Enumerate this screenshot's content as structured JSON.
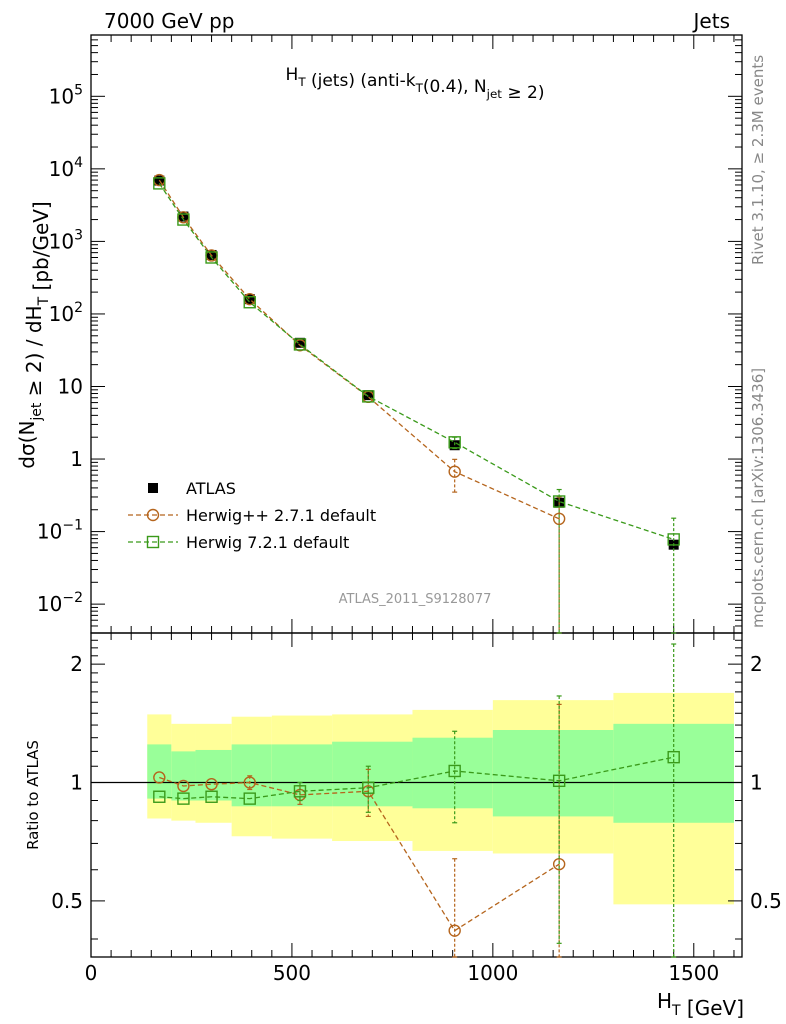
{
  "header": {
    "left": "7000 GeV pp",
    "right": "Jets"
  },
  "side_text": {
    "rivet": "Rivet 3.1.10, ≥ 2.3M events",
    "mcplots": "mcplots.cern.ch [arXiv:1306.3436]"
  },
  "chart_data": [
    {
      "type": "scatter",
      "title": "H_T (jets) (anti-k_T(0.4), N_jet ≥ 2)",
      "watermark": "ATLAS_2011_S9128077",
      "ylabel": "dσ(N_jet ≥ 2) / dH_T [pb/GeV]",
      "y_scale": "log",
      "xlim": [
        0,
        1620
      ],
      "ylim": [
        0.004,
        700000
      ],
      "y_ticks": [
        {
          "value": 0.01,
          "label": "10^-2"
        },
        {
          "value": 0.1,
          "label": "10^-1"
        },
        {
          "value": 1,
          "label": "1"
        },
        {
          "value": 10,
          "label": "10"
        },
        {
          "value": 100,
          "label": "10^2"
        },
        {
          "value": 1000,
          "label": "10^3"
        },
        {
          "value": 10000,
          "label": "10^4"
        },
        {
          "value": 100000,
          "label": "10^5"
        }
      ],
      "legend_position": "bottom-left",
      "series": [
        {
          "name": "ATLAS",
          "color": "#000000",
          "marker": "filled-square",
          "x": [
            170,
            230,
            300,
            395,
            520,
            690,
            905,
            1165,
            1450
          ],
          "y": [
            6900,
            2200,
            650,
            160,
            40,
            7.6,
            1.55,
            0.25,
            0.066
          ]
        },
        {
          "name": "Herwig++ 2.7.1 default",
          "color": "#b5651d",
          "marker": "open-circle",
          "x": [
            170,
            230,
            300,
            395,
            520,
            690,
            905,
            1165
          ],
          "y": [
            7000,
            2150,
            640,
            160,
            37,
            7.2,
            0.67,
            0.15
          ],
          "y_err_low": [
            0,
            0,
            0,
            0,
            0,
            0,
            0.32,
            0.15
          ],
          "y_err_high": [
            0,
            0,
            0,
            0,
            0,
            0,
            0.32,
            0.15
          ]
        },
        {
          "name": "Herwig 7.2.1 default",
          "color": "#3a9a1a",
          "marker": "open-square",
          "x": [
            170,
            230,
            300,
            395,
            520,
            690,
            905,
            1165,
            1450
          ],
          "y": [
            6300,
            2000,
            600,
            145,
            38,
            7.3,
            1.7,
            0.26,
            0.078
          ],
          "y_err_low": [
            0,
            0,
            0,
            0,
            0,
            0,
            0.3,
            0.26,
            0.078
          ],
          "y_err_high": [
            0,
            0,
            0,
            0,
            0,
            0,
            0.3,
            0.12,
            0.075
          ]
        }
      ]
    },
    {
      "type": "scatter",
      "ylabel": "Ratio to ATLAS",
      "xlabel": "H_T [GeV]",
      "xlim": [
        0,
        1620
      ],
      "ylim": [
        0.36,
        2.4
      ],
      "y_ticks": [
        0.5,
        1,
        2
      ],
      "x_ticks": [
        0,
        500,
        1000,
        1500
      ],
      "reference_line": 1,
      "bands": {
        "x_edges": [
          140,
          200,
          260,
          350,
          450,
          600,
          800,
          1000,
          1300,
          1600
        ],
        "green_low": [
          0.91,
          0.9,
          0.9,
          0.87,
          0.87,
          0.87,
          0.86,
          0.82,
          0.79
        ],
        "green_high": [
          1.25,
          1.2,
          1.21,
          1.25,
          1.25,
          1.27,
          1.3,
          1.36,
          1.41
        ],
        "yellow_low": [
          0.81,
          0.8,
          0.79,
          0.73,
          0.72,
          0.71,
          0.67,
          0.66,
          0.49
        ],
        "yellow_high": [
          1.49,
          1.41,
          1.41,
          1.47,
          1.48,
          1.49,
          1.53,
          1.62,
          1.69
        ]
      },
      "series": [
        {
          "name": "Herwig++ 2.7.1 default",
          "color": "#b5651d",
          "marker": "open-circle",
          "x": [
            170,
            230,
            300,
            395,
            520,
            690,
            905,
            1165
          ],
          "y": [
            1.03,
            0.98,
            0.99,
            1.0,
            0.93,
            0.95,
            0.42,
            0.62
          ],
          "y_err_low": [
            0,
            0,
            0,
            0.04,
            0.05,
            0.13,
            0.08,
            0.32
          ],
          "y_err_high": [
            0,
            0,
            0,
            0.04,
            0.05,
            0.13,
            0.22,
            0.96
          ]
        },
        {
          "name": "Herwig 7.2.1 default",
          "color": "#3a9a1a",
          "marker": "open-square",
          "x": [
            170,
            230,
            300,
            395,
            520,
            690,
            905,
            1165,
            1450
          ],
          "y": [
            0.92,
            0.91,
            0.92,
            0.91,
            0.95,
            0.97,
            1.07,
            1.01,
            1.16
          ],
          "y_err_low": [
            0,
            0,
            0,
            0,
            0.05,
            0.13,
            0.28,
            0.62,
            0.8
          ],
          "y_err_high": [
            0,
            0,
            0,
            0,
            0.05,
            0.13,
            0.28,
            0.65,
            1.09
          ]
        }
      ]
    }
  ]
}
